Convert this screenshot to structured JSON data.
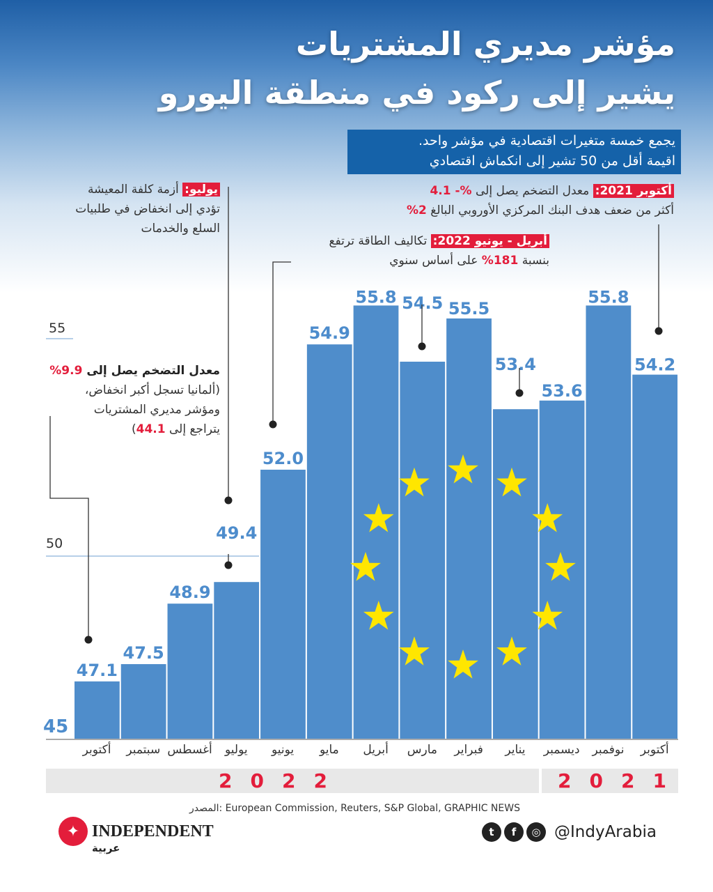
{
  "title": {
    "line1": "مؤشر مديري المشتريات",
    "line2": "يشير إلى ركود في منطقة اليورو"
  },
  "subtitle": {
    "line1": "يجمع خمسة متغيرات اقتصادية في مؤشر واحد.",
    "line2": "اقيمة أقل من 50 تشير إلى انكماش اقتصادي"
  },
  "notes": {
    "oct2021": {
      "tag": "أكتوبر 2021:",
      "text1": " معدل التضخم يصل إلى ",
      "val1": "4.1 -%",
      "text2": "أكثر من ضعف هدف البنك المركزي الأوروبي البالغ ",
      "val2": "2%"
    },
    "aprjun2022": {
      "tag": "أبريل - يونيو 2022:",
      "text1": " تكاليف الطاقة ترتفع",
      "text2a": "بنسبة ",
      "val": "181%",
      "text2b": " على أساس سنوي"
    },
    "july": {
      "tag": "يوليو:",
      "text1": " أزمة كلفة المعيشة",
      "text2": "تؤدي إلى انخفاض في طلبيات",
      "text3": "السلع والخدمات"
    },
    "oct2022": {
      "bold": "معدل التضخم يصل إلى ",
      "val1": "9.9%",
      "text2": "(ألمانيا تسجل أكبر انخفاض،",
      "text3": "ومؤشر مديري المشتريات",
      "text4a": "يتراجع إلى ",
      "val2": "44.1",
      "text4b": ")"
    }
  },
  "chart_data": {
    "type": "bar",
    "title": "مؤشر مديري المشتريات",
    "categories": [
      "أكتوبر",
      "سبتمبر",
      "أغسطس",
      "يوليو",
      "يونيو",
      "مايو",
      "أبريل",
      "مارس",
      "فبراير",
      "يناير",
      "ديسمبر",
      "نوفمبر",
      "أكتوبر"
    ],
    "values": [
      47.1,
      47.5,
      48.9,
      49.4,
      52.0,
      54.9,
      55.8,
      54.5,
      55.5,
      53.4,
      53.6,
      55.8,
      54.2
    ],
    "value_labels": [
      "47.1",
      "47.5",
      "48.9",
      "49.4",
      "52.0",
      "54.9",
      "55.8",
      "54.5",
      "55.5",
      "53.4",
      "53.6",
      "55.8",
      "54.2"
    ],
    "years": {
      "y2022": "2022",
      "y2021": "2021"
    },
    "yticks": [
      "55",
      "50",
      "45"
    ],
    "ylim": [
      45,
      56
    ],
    "bar_color": "#4f8dcb",
    "label_color": "#4d8ccc"
  },
  "source": "المصدر: European Commission, Reuters, S&P Global, GRAPHIC NEWS",
  "brand": {
    "name": "INDEPENDENT",
    "sub": "عربية",
    "handle": "@IndyArabia"
  }
}
